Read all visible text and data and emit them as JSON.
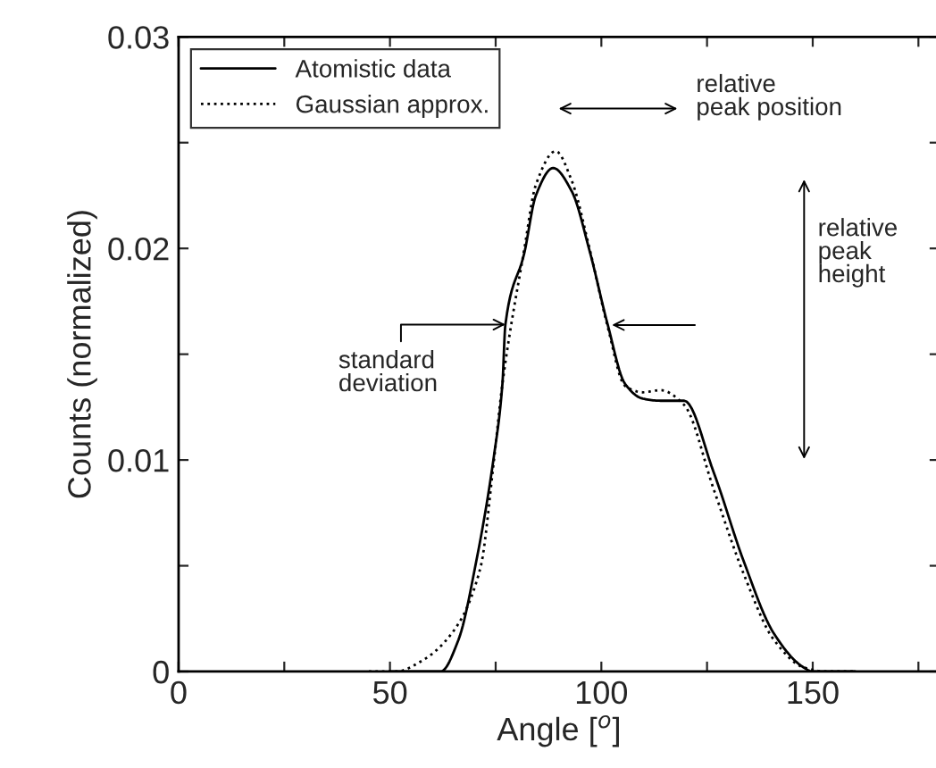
{
  "chart_data": {
    "type": "line",
    "xlabel": "Angle [$^{o}$]",
    "ylabel": "Counts (normalized)",
    "series": [
      {
        "name": "Atomistic data",
        "color": "#000000",
        "line_style": "solid",
        "x": [
          50,
          62,
          66.2,
          70.4,
          74.6,
          76.6,
          77.3,
          81.8,
          84.5,
          88.6,
          93.0,
          97.2,
          101.5,
          105.6,
          109.8,
          114,
          119.6,
          126.6,
          133.7,
          140.8,
          147.8,
          150,
          160
        ],
        "values": [
          0,
          0,
          0.0015,
          0.0052,
          0.0102,
          0.0136,
          0.0164,
          0.0198,
          0.0225,
          0.0238,
          0.0227,
          0.0199,
          0.0164,
          0.0136,
          0.0129,
          0.0128,
          0.0128,
          0.0094,
          0.0052,
          0.0018,
          0.0002,
          0,
          0
        ]
      },
      {
        "name": "Gaussian approx.",
        "color": "#000000",
        "line_style": "dotted",
        "x": [
          45,
          51.5,
          57.5,
          64.6,
          71.4,
          74.6,
          76.6,
          81.8,
          84.5,
          89.2,
          93.0,
          97.2,
          101.5,
          105.6,
          109.8,
          114,
          119.6,
          126.6,
          133.7,
          140.8,
          147.8,
          153,
          160
        ],
        "values": [
          0,
          0,
          0.0005,
          0.0018,
          0.0049,
          0.01,
          0.0136,
          0.02,
          0.023,
          0.0246,
          0.0232,
          0.02,
          0.0163,
          0.0135,
          0.0132,
          0.0133,
          0.0126,
          0.0086,
          0.0046,
          0.0015,
          0.0002,
          0,
          0
        ]
      }
    ],
    "xlim": [
      0,
      180
    ],
    "xticks": [
      0,
      {
        "value": 25,
        "label": null
      },
      50,
      {
        "value": 75,
        "label": null
      },
      100,
      {
        "value": 125,
        "label": null
      },
      150,
      {
        "value": 175,
        "label": null
      }
    ],
    "ylim": [
      0,
      0.03
    ],
    "yticks": [
      0,
      {
        "value": 0.005,
        "label": null
      },
      0.01,
      {
        "value": 0.015,
        "label": null
      },
      0.02,
      {
        "value": 0.025,
        "label": null
      },
      0.03
    ],
    "annotations": [
      "relative\npeak position",
      "relative\npeak\nheight",
      {
        "text": "standard\ndeviation",
        "x": 77.3,
        "y": 0.0164
      }
    ],
    "legend": "top left",
    "grid": false
  }
}
